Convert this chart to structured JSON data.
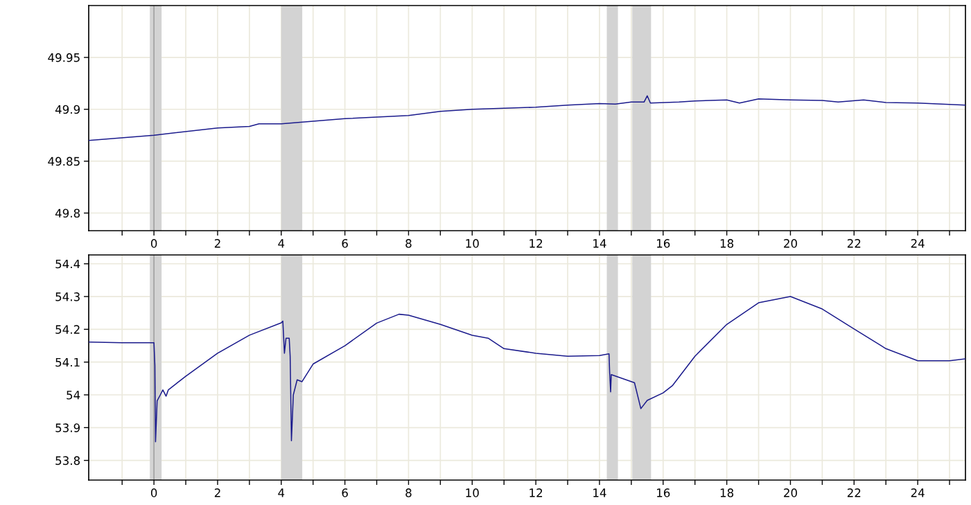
{
  "chart_data": [
    {
      "type": "line",
      "x": [
        -2.05,
        0,
        2,
        3,
        3.3,
        4,
        5,
        6,
        8,
        9,
        10,
        11,
        12,
        13,
        14,
        14.5,
        15,
        15.4,
        15.5,
        15.6,
        16.5,
        17,
        18,
        18.4,
        19,
        20,
        21,
        21.5,
        22.3,
        23,
        24,
        25.5
      ],
      "series": [
        {
          "color": "#1a1a8c",
          "values": [
            49.87,
            49.875,
            49.882,
            49.8835,
            49.886,
            49.886,
            49.8885,
            49.891,
            49.894,
            49.898,
            49.9,
            49.901,
            49.902,
            49.904,
            49.9055,
            49.905,
            49.907,
            49.907,
            49.913,
            49.906,
            49.907,
            49.908,
            49.909,
            49.906,
            49.91,
            49.909,
            49.9085,
            49.907,
            49.909,
            49.9065,
            49.906,
            49.904
          ]
        }
      ],
      "xlim": [
        -2.05,
        25.5
      ],
      "ylim": [
        49.783,
        50.0
      ],
      "xticks": [
        {
          "value": -1,
          "label": null
        },
        0,
        {
          "value": 1,
          "label": null
        },
        2,
        {
          "value": 3,
          "label": null
        },
        4,
        {
          "value": 5,
          "label": null
        },
        6,
        {
          "value": 7,
          "label": null
        },
        8,
        {
          "value": 9,
          "label": null
        },
        10,
        {
          "value": 11,
          "label": null
        },
        12,
        {
          "value": 13,
          "label": null
        },
        14,
        {
          "value": 15,
          "label": null
        },
        16,
        {
          "value": 17,
          "label": null
        },
        18,
        {
          "value": 19,
          "label": null
        },
        20,
        {
          "value": 21,
          "label": null
        },
        22,
        {
          "value": 23,
          "label": null
        },
        24,
        {
          "value": 25,
          "label": null
        }
      ],
      "yticks": [
        49.8,
        49.85,
        49.9,
        49.95
      ],
      "grid": true,
      "legend": false,
      "bands": [
        {
          "axis": "x",
          "from": -0.13,
          "to": 0.24,
          "color": "#d3d3d3"
        },
        {
          "axis": "x",
          "from": 4.0,
          "to": 4.66,
          "color": "#d3d3d3"
        },
        {
          "axis": "x",
          "from": 14.23,
          "to": 14.58,
          "color": "#d3d3d3"
        },
        {
          "axis": "x",
          "from": 15.03,
          "to": 15.62,
          "color": "#d3d3d3"
        }
      ],
      "ref_lines": [
        {
          "axis": "x",
          "value": 0,
          "color": "#a0a0a0"
        }
      ]
    },
    {
      "type": "line",
      "x": [
        -2.05,
        -1,
        0,
        0.03,
        0.05,
        0.1,
        0.2,
        0.28,
        0.38,
        0.45,
        1,
        2,
        3,
        4,
        4.05,
        4.1,
        4.15,
        4.25,
        4.28,
        4.32,
        4.38,
        4.5,
        4.65,
        5,
        6,
        7,
        7.7,
        8,
        9,
        10,
        10.5,
        11,
        12,
        13,
        14,
        14.3,
        14.32,
        14.35,
        14.37,
        15.1,
        15.3,
        15.5,
        16,
        16.3,
        17,
        18,
        19,
        20,
        21,
        22,
        23,
        24,
        25,
        25.5
      ],
      "series": [
        {
          "color": "#1a1a8c",
          "values": [
            54.161,
            54.159,
            54.159,
            54.09,
            53.857,
            53.982,
            54.0,
            54.015,
            53.996,
            54.015,
            54.057,
            54.127,
            54.182,
            54.22,
            54.225,
            54.127,
            54.173,
            54.173,
            54.118,
            53.86,
            54.0,
            54.046,
            54.04,
            54.094,
            54.15,
            54.219,
            54.246,
            54.243,
            54.215,
            54.182,
            54.173,
            54.141,
            54.127,
            54.118,
            54.12,
            54.125,
            54.067,
            54.009,
            54.062,
            54.037,
            53.958,
            53.983,
            54.006,
            54.029,
            54.118,
            54.215,
            54.281,
            54.3,
            54.262,
            54.201,
            54.141,
            54.104,
            54.104,
            54.11
          ]
        }
      ],
      "xlim": [
        -2.05,
        25.5
      ],
      "ylim": [
        53.74,
        54.427
      ],
      "xticks": [
        {
          "value": -1,
          "label": null
        },
        0,
        {
          "value": 1,
          "label": null
        },
        2,
        {
          "value": 3,
          "label": null
        },
        4,
        {
          "value": 5,
          "label": null
        },
        6,
        {
          "value": 7,
          "label": null
        },
        8,
        {
          "value": 9,
          "label": null
        },
        10,
        {
          "value": 11,
          "label": null
        },
        12,
        {
          "value": 13,
          "label": null
        },
        14,
        {
          "value": 15,
          "label": null
        },
        16,
        {
          "value": 17,
          "label": null
        },
        18,
        {
          "value": 19,
          "label": null
        },
        20,
        {
          "value": 21,
          "label": null
        },
        22,
        {
          "value": 23,
          "label": null
        },
        24,
        {
          "value": 25,
          "label": null
        }
      ],
      "yticks": [
        53.8,
        53.9,
        54,
        54.1,
        54.2,
        54.3,
        54.4
      ],
      "grid": true,
      "legend": false,
      "bands": [
        {
          "axis": "x",
          "from": -0.13,
          "to": 0.24,
          "color": "#d3d3d3"
        },
        {
          "axis": "x",
          "from": 4.0,
          "to": 4.66,
          "color": "#d3d3d3"
        },
        {
          "axis": "x",
          "from": 14.23,
          "to": 14.58,
          "color": "#d3d3d3"
        },
        {
          "axis": "x",
          "from": 15.03,
          "to": 15.62,
          "color": "#d3d3d3"
        }
      ],
      "ref_lines": [
        {
          "axis": "x",
          "value": 0,
          "color": "#a0a0a0"
        }
      ]
    }
  ]
}
